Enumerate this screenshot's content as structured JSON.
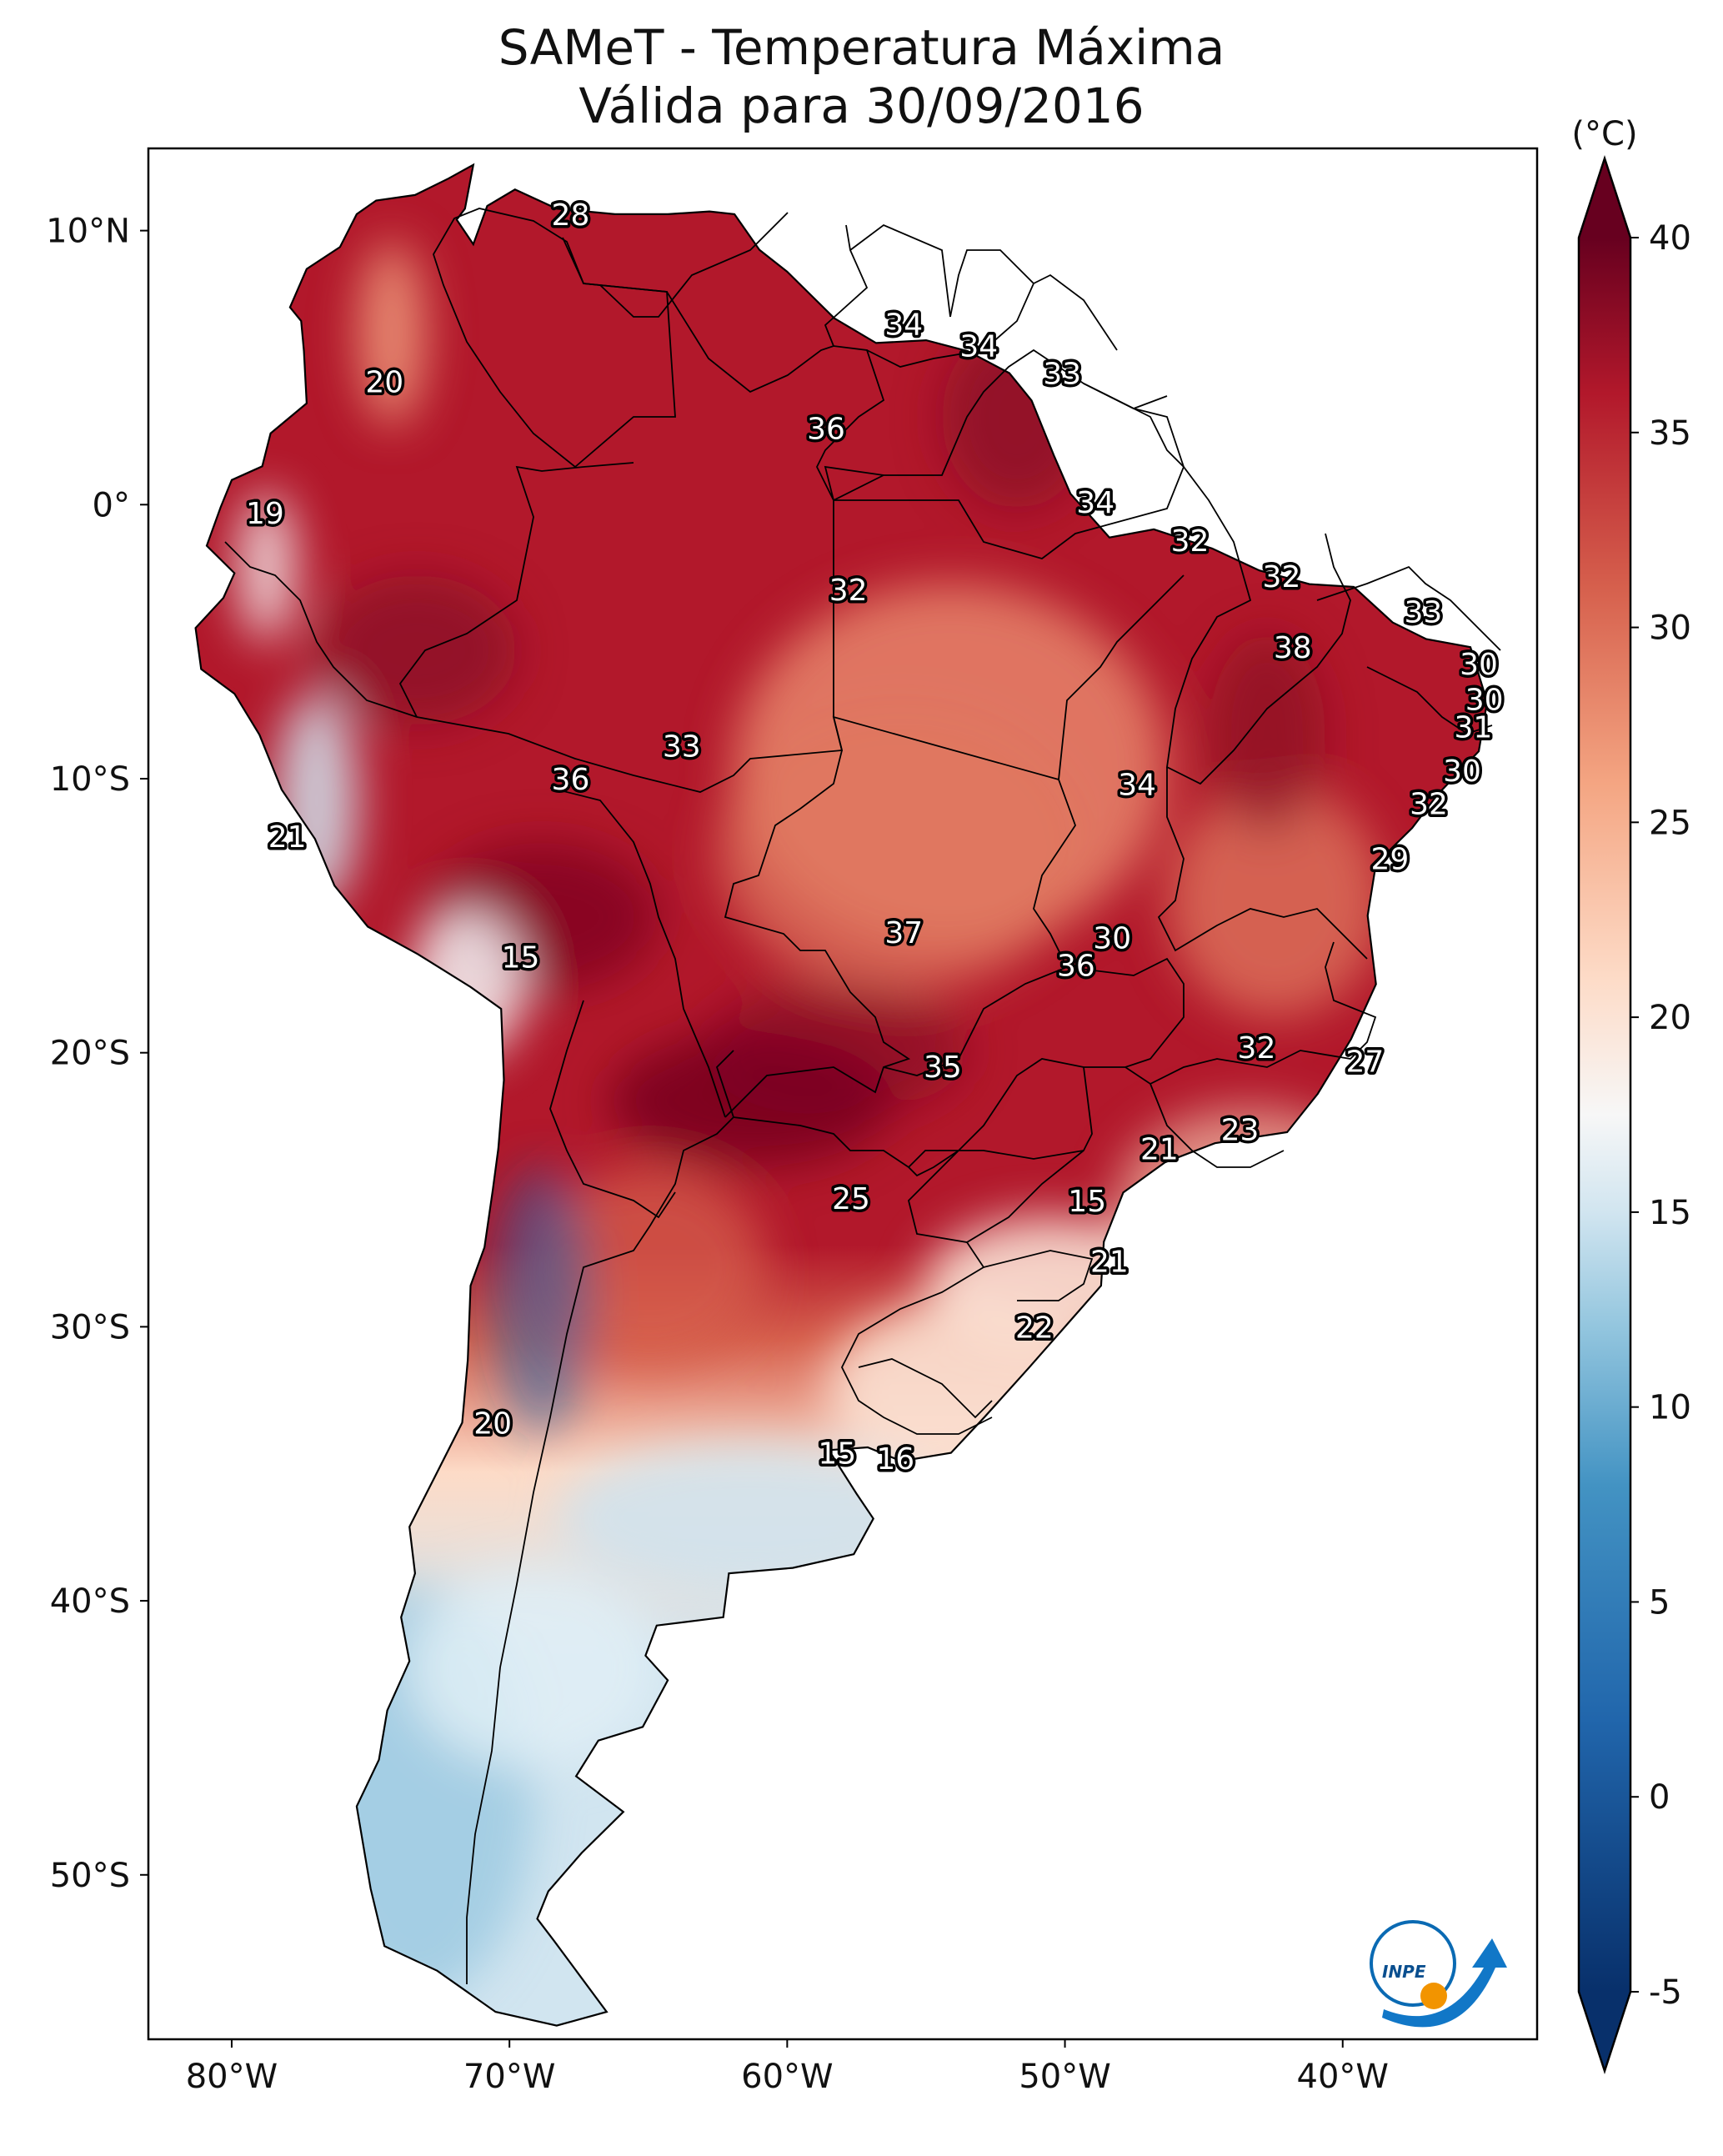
{
  "title": {
    "line1": "SAMeT - Temperatura Máxima",
    "line2": "Válida para 30/09/2016"
  },
  "map": {
    "lon_ticks": [
      {
        "lon": -80,
        "label": "80°W"
      },
      {
        "lon": -70,
        "label": "70°W"
      },
      {
        "lon": -60,
        "label": "60°W"
      },
      {
        "lon": -50,
        "label": "50°W"
      },
      {
        "lon": -40,
        "label": "40°W"
      }
    ],
    "lat_ticks": [
      {
        "lat": 10,
        "label": "10°N"
      },
      {
        "lat": 0,
        "label": "0°"
      },
      {
        "lat": -10,
        "label": "10°S"
      },
      {
        "lat": -20,
        "label": "20°S"
      },
      {
        "lat": -30,
        "label": "30°S"
      },
      {
        "lat": -40,
        "label": "40°S"
      },
      {
        "lat": -50,
        "label": "50°S"
      }
    ],
    "extent": {
      "lon_min": -83,
      "lon_max": -33,
      "lat_min": -56,
      "lat_max": 13
    }
  },
  "colorbar": {
    "unit": "(°C)",
    "min": -5,
    "max": 40,
    "ticks": [
      {
        "value": 40,
        "label": "40"
      },
      {
        "value": 35,
        "label": "35"
      },
      {
        "value": 30,
        "label": "30"
      },
      {
        "value": 25,
        "label": "25"
      },
      {
        "value": 20,
        "label": "20"
      },
      {
        "value": 15,
        "label": "15"
      },
      {
        "value": 10,
        "label": "10"
      },
      {
        "value": 5,
        "label": "5"
      },
      {
        "value": 0,
        "label": "0"
      },
      {
        "value": -5,
        "label": "-5"
      }
    ],
    "stops": [
      {
        "value": -5,
        "color": "#08306b"
      },
      {
        "value": 2,
        "color": "#2166ac"
      },
      {
        "value": 8,
        "color": "#4393c3"
      },
      {
        "value": 12,
        "color": "#92c5de"
      },
      {
        "value": 15,
        "color": "#d1e5f0"
      },
      {
        "value": 17.5,
        "color": "#f7f7f7"
      },
      {
        "value": 21,
        "color": "#fddbc7"
      },
      {
        "value": 26,
        "color": "#f4a582"
      },
      {
        "value": 31,
        "color": "#d6604d"
      },
      {
        "value": 36,
        "color": "#b2182b"
      },
      {
        "value": 40,
        "color": "#67001f"
      }
    ]
  },
  "station_values": [
    {
      "lon": -67.8,
      "lat": 10.6,
      "value": "28"
    },
    {
      "lon": -74.5,
      "lat": 4.5,
      "value": "20"
    },
    {
      "lon": -78.8,
      "lat": -0.3,
      "value": "19"
    },
    {
      "lon": -55.8,
      "lat": 6.6,
      "value": "34"
    },
    {
      "lon": -53.1,
      "lat": 5.8,
      "value": "34"
    },
    {
      "lon": -50.1,
      "lat": 4.8,
      "value": "33"
    },
    {
      "lon": -58.6,
      "lat": 2.8,
      "value": "36"
    },
    {
      "lon": -48.9,
      "lat": 0.1,
      "value": "34"
    },
    {
      "lon": -45.5,
      "lat": -1.3,
      "value": "32"
    },
    {
      "lon": -42.2,
      "lat": -2.6,
      "value": "32"
    },
    {
      "lon": -57.8,
      "lat": -3.1,
      "value": "32"
    },
    {
      "lon": -37.1,
      "lat": -3.9,
      "value": "33"
    },
    {
      "lon": -41.8,
      "lat": -5.2,
      "value": "38"
    },
    {
      "lon": -35.1,
      "lat": -5.8,
      "value": "30"
    },
    {
      "lon": -34.9,
      "lat": -7.1,
      "value": "30"
    },
    {
      "lon": -35.3,
      "lat": -8.1,
      "value": "31"
    },
    {
      "lon": -63.8,
      "lat": -8.8,
      "value": "33"
    },
    {
      "lon": -67.8,
      "lat": -10.0,
      "value": "36"
    },
    {
      "lon": -35.7,
      "lat": -9.7,
      "value": "30"
    },
    {
      "lon": -47.4,
      "lat": -10.2,
      "value": "34"
    },
    {
      "lon": -36.9,
      "lat": -10.9,
      "value": "32"
    },
    {
      "lon": -78.0,
      "lat": -12.1,
      "value": "21"
    },
    {
      "lon": -38.3,
      "lat": -12.9,
      "value": "29"
    },
    {
      "lon": -55.8,
      "lat": -15.6,
      "value": "37"
    },
    {
      "lon": -48.3,
      "lat": -15.8,
      "value": "30"
    },
    {
      "lon": -69.6,
      "lat": -16.5,
      "value": "15"
    },
    {
      "lon": -49.6,
      "lat": -16.8,
      "value": "36"
    },
    {
      "lon": -43.1,
      "lat": -19.8,
      "value": "32"
    },
    {
      "lon": -39.2,
      "lat": -20.3,
      "value": "27"
    },
    {
      "lon": -54.4,
      "lat": -20.5,
      "value": "35"
    },
    {
      "lon": -43.7,
      "lat": -22.8,
      "value": "23"
    },
    {
      "lon": -46.6,
      "lat": -23.5,
      "value": "21"
    },
    {
      "lon": -57.7,
      "lat": -25.3,
      "value": "25"
    },
    {
      "lon": -49.2,
      "lat": -25.4,
      "value": "15"
    },
    {
      "lon": -48.4,
      "lat": -27.6,
      "value": "21"
    },
    {
      "lon": -51.1,
      "lat": -30.0,
      "value": "22"
    },
    {
      "lon": -70.6,
      "lat": -33.5,
      "value": "20"
    },
    {
      "lon": -58.2,
      "lat": -34.6,
      "value": "15"
    },
    {
      "lon": -56.1,
      "lat": -34.8,
      "value": "16"
    }
  ],
  "logo": {
    "text": "INPE"
  }
}
